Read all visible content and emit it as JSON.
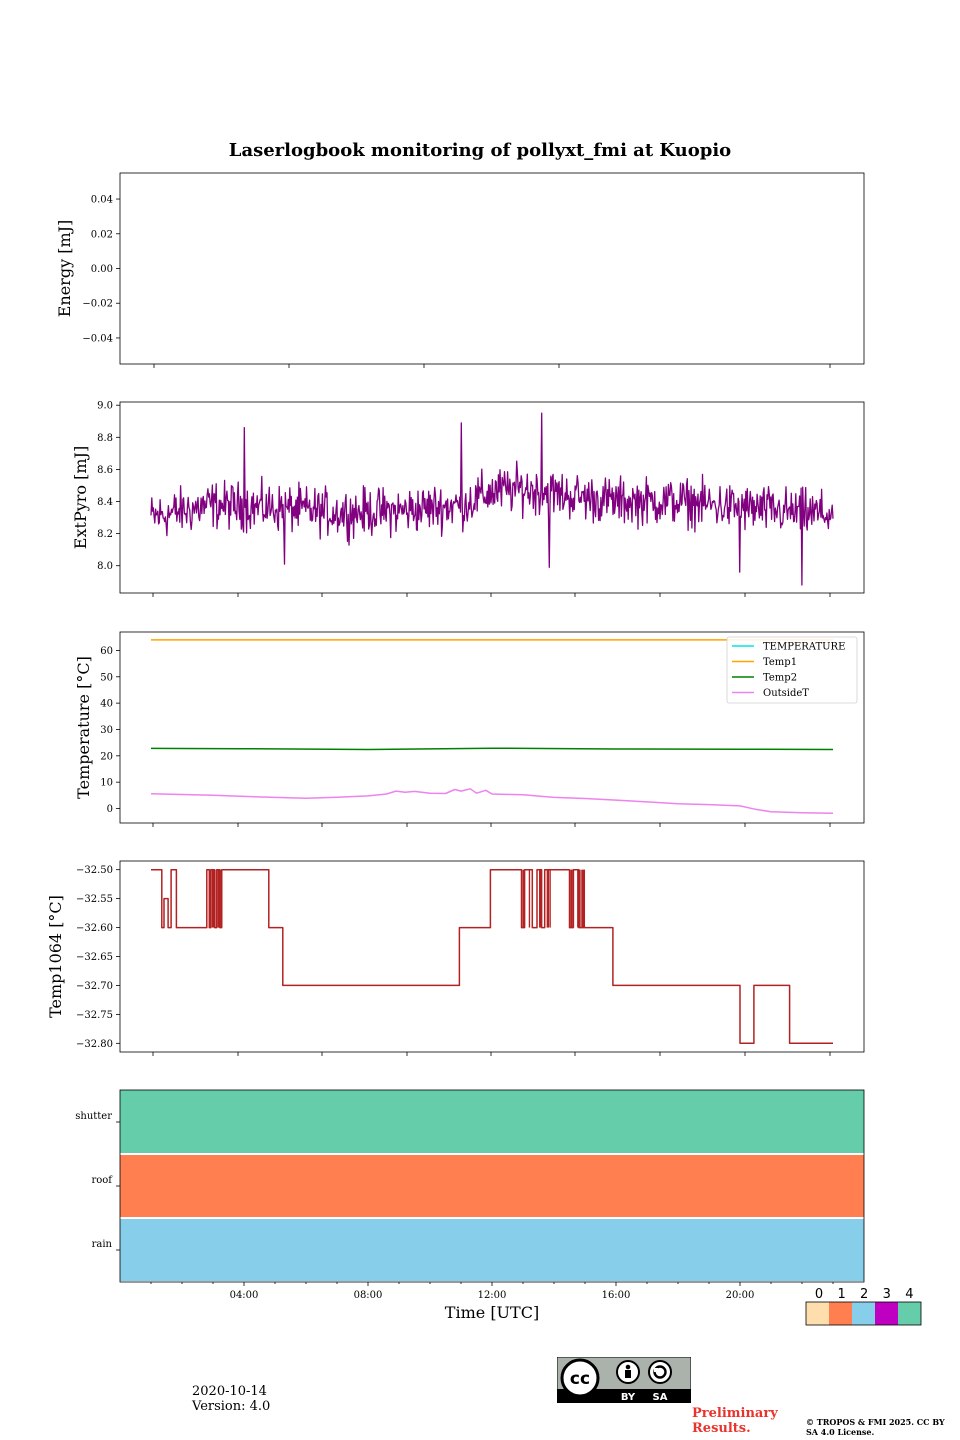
{
  "figure": {
    "title": "Laserlogbook monitoring of pollyxt_fmi at Kuopio",
    "date": "2020-10-14",
    "version": "Version: 4.0",
    "preliminary": "Preliminary Results.",
    "copyright": "© TROPOS & FMI 2025. CC BY SA 4.0 License.",
    "cc_badge": {
      "by": "BY",
      "sa": "SA",
      "cc": "cc"
    }
  },
  "chart_data": [
    {
      "id": "energy",
      "type": "line",
      "ylabel": "Energy [mJ]",
      "ylim": [
        -0.055,
        0.055
      ],
      "yticks": [
        -0.04,
        -0.02,
        0.0,
        0.02,
        0.04
      ],
      "ytick_labels": [
        "−0.04",
        "−0.02",
        "0.00",
        "0.02",
        "0.04"
      ],
      "series": []
    },
    {
      "id": "extpyro",
      "type": "line",
      "ylabel": "ExtPyro [mJ]",
      "ylim": [
        7.83,
        9.02
      ],
      "yticks": [
        8.0,
        8.2,
        8.4,
        8.6,
        8.8,
        9.0
      ],
      "ytick_labels": [
        "8.0",
        "8.2",
        "8.4",
        "8.6",
        "8.8",
        "9.0"
      ],
      "series": [
        {
          "name": "ExtPyro",
          "color": "#800080",
          "noise": 0.11,
          "x": [
            1,
            3,
            5,
            7,
            9,
            11,
            12,
            13,
            14,
            16,
            18,
            20,
            22,
            23
          ],
          "y": [
            8.3,
            8.38,
            8.36,
            8.33,
            8.34,
            8.38,
            8.46,
            8.48,
            8.45,
            8.4,
            8.4,
            8.36,
            8.33,
            8.32
          ],
          "spikes": [
            [
              4.0,
              8.86
            ],
            [
              11.0,
              8.89
            ],
            [
              13.6,
              8.95
            ],
            [
              13.85,
              7.99
            ],
            [
              20.0,
              7.96
            ],
            [
              22.0,
              7.88
            ],
            [
              5.3,
              8.01
            ]
          ]
        }
      ]
    },
    {
      "id": "temperature",
      "type": "line",
      "ylabel": "Temperature [°C]",
      "ylim": [
        -5.5,
        67
      ],
      "yticks": [
        0,
        10,
        20,
        30,
        40,
        50,
        60
      ],
      "ytick_labels": [
        "0",
        "10",
        "20",
        "30",
        "40",
        "50",
        "60"
      ],
      "legend_position": "top-right",
      "series": [
        {
          "name": "TEMPERATURE",
          "color": "#00e5e5",
          "x": [],
          "y": []
        },
        {
          "name": "Temp1",
          "color": "#ffa500",
          "x": [
            1,
            23
          ],
          "y": [
            64,
            64
          ]
        },
        {
          "name": "Temp2",
          "color": "#008000",
          "x": [
            1,
            4,
            8,
            12,
            16,
            20,
            23
          ],
          "y": [
            22.8,
            22.7,
            22.4,
            22.9,
            22.6,
            22.5,
            22.4
          ]
        },
        {
          "name": "OutsideT",
          "color": "#ee82ee",
          "x": [
            1,
            2,
            3,
            4,
            5,
            6,
            7,
            8,
            8.6,
            8.9,
            9.2,
            9.5,
            10,
            10.5,
            10.8,
            11.0,
            11.3,
            11.5,
            11.8,
            12.0,
            13,
            14,
            15,
            16,
            17,
            18,
            19,
            20,
            20.5,
            21,
            22,
            23
          ],
          "y": [
            5.6,
            5.3,
            5.0,
            4.6,
            4.2,
            3.9,
            4.3,
            4.8,
            5.5,
            6.6,
            6.2,
            6.5,
            5.8,
            5.7,
            7.2,
            6.6,
            7.5,
            5.8,
            6.9,
            5.5,
            5.2,
            4.2,
            3.8,
            3.2,
            2.5,
            1.8,
            1.5,
            1.0,
            -0.3,
            -1.2,
            -1.6,
            -1.8
          ]
        }
      ]
    },
    {
      "id": "temp1064",
      "type": "line",
      "ylabel": "Temp1064 [°C]",
      "ylim": [
        -32.815,
        -32.485
      ],
      "yticks": [
        -32.8,
        -32.75,
        -32.7,
        -32.65,
        -32.6,
        -32.55,
        -32.5
      ],
      "ytick_labels": [
        "−32.80",
        "−32.75",
        "−32.70",
        "−32.65",
        "−32.60",
        "−32.55",
        "−32.50"
      ],
      "series": [
        {
          "name": "Temp1064",
          "color": "#b22222",
          "x": [
            1,
            1.35,
            1.35,
            1.42,
            1.42,
            1.55,
            1.55,
            1.65,
            1.65,
            1.82,
            1.82,
            2.8,
            2.8,
            2.88,
            2.88,
            2.93,
            2.93,
            3.05,
            3.05,
            3.12,
            3.12,
            3.22,
            3.22,
            3.28,
            3.28,
            4.8,
            4.8,
            5.25,
            5.25,
            10.95,
            10.95,
            11.0,
            11.0,
            11.95,
            11.95,
            12.95,
            12.95,
            13.05,
            13.05,
            13.3,
            13.3,
            13.45,
            13.45,
            13.6,
            13.6,
            13.7,
            13.7,
            14.5,
            14.5,
            14.62,
            14.62,
            14.8,
            14.8,
            15.0,
            15.0,
            15.9,
            15.9,
            16.1,
            16.1,
            20.0,
            20.0,
            20.05,
            20.05,
            20.45,
            20.45,
            21.6,
            21.6,
            23
          ],
          "y": [
            -32.5,
            -32.5,
            -32.6,
            -32.6,
            -32.55,
            -32.55,
            -32.6,
            -32.6,
            -32.5,
            -32.5,
            -32.6,
            -32.6,
            -32.5,
            -32.5,
            -32.6,
            -32.6,
            -32.5,
            -32.5,
            -32.6,
            -32.6,
            -32.5,
            -32.5,
            -32.6,
            -32.6,
            -32.5,
            -32.5,
            -32.6,
            -32.6,
            -32.7,
            -32.7,
            -32.6,
            -32.6,
            -32.6,
            -32.6,
            -32.5,
            -32.5,
            -32.6,
            -32.6,
            -32.5,
            -32.5,
            -32.6,
            -32.6,
            -32.5,
            -32.5,
            -32.6,
            -32.6,
            -32.5,
            -32.5,
            -32.6,
            -32.6,
            -32.5,
            -32.5,
            -32.6,
            -32.6,
            -32.6,
            -32.6,
            -32.7,
            -32.7,
            -32.7,
            -32.7,
            -32.8,
            -32.8,
            -32.8,
            -32.8,
            -32.7,
            -32.7,
            -32.8,
            -32.8
          ],
          "jitter": [
            [
              13.0,
              13.9
            ],
            [
              14.5,
              15.0
            ],
            [
              2.8,
              3.3
            ]
          ]
        }
      ]
    },
    {
      "id": "status",
      "type": "heatmap",
      "rows": [
        "shutter",
        "roof",
        "rain"
      ],
      "row_values": [
        4,
        1,
        2
      ],
      "xlabel": "Time [UTC]",
      "xlim": [
        0,
        24
      ],
      "xticks": [
        4,
        8,
        12,
        16,
        20
      ],
      "xtick_labels": [
        "04:00",
        "08:00",
        "12:00",
        "16:00",
        "20:00"
      ],
      "colorbar": {
        "ticks": [
          "0",
          "1",
          "2",
          "3",
          "4"
        ],
        "colors": [
          "#ffdead",
          "#ff7f50",
          "#87ceeb",
          "#c000c0",
          "#66cdaa"
        ]
      }
    }
  ]
}
